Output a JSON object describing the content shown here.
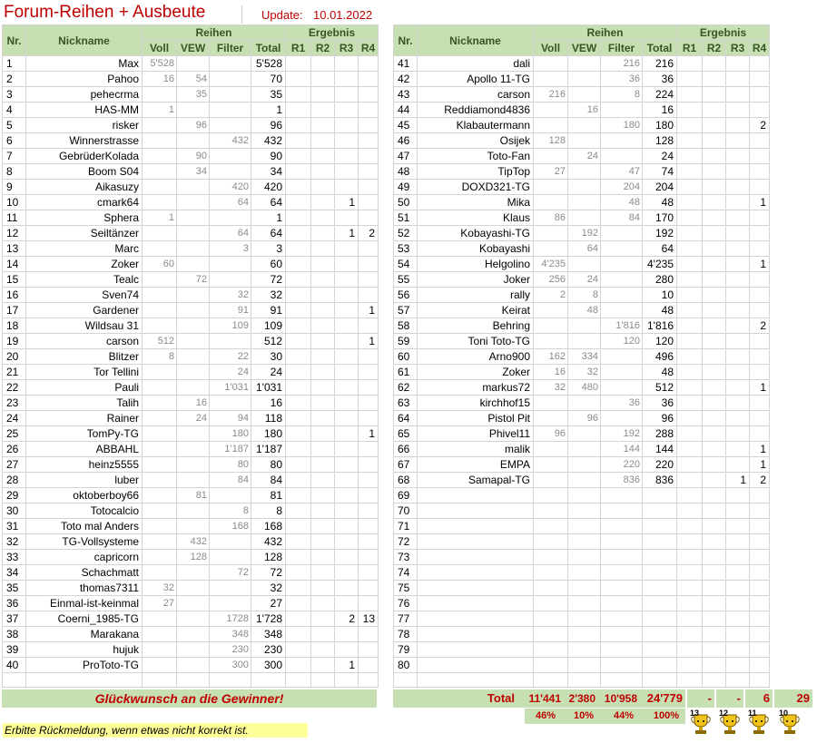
{
  "header": {
    "title": "Forum-Reihen + Ausbeute",
    "update_label": "Update:",
    "update_date": "10.01.2022"
  },
  "table_headers": {
    "nr": "Nr.",
    "nickname": "Nickname",
    "reihen": "Reihen",
    "ergebnis": "Ergebnis",
    "voll": "Voll",
    "vew": "VEW",
    "filter": "Filter",
    "total": "Total",
    "r1": "R1",
    "r2": "R2",
    "r3": "R3",
    "r4": "R4"
  },
  "rows": [
    {
      "nr": "1",
      "nick": "Max",
      "voll": "5'528",
      "vew": "",
      "filter": "",
      "total": "5'528",
      "r1": "",
      "r2": "",
      "r3": "",
      "r4": ""
    },
    {
      "nr": "2",
      "nick": "Pahoo",
      "voll": "16",
      "vew": "54",
      "filter": "",
      "total": "70",
      "r1": "",
      "r2": "",
      "r3": "",
      "r4": ""
    },
    {
      "nr": "3",
      "nick": "pehecrma",
      "voll": "",
      "vew": "35",
      "filter": "",
      "total": "35",
      "r1": "",
      "r2": "",
      "r3": "",
      "r4": ""
    },
    {
      "nr": "4",
      "nick": "HAS-MM",
      "voll": "1",
      "vew": "",
      "filter": "",
      "total": "1",
      "r1": "",
      "r2": "",
      "r3": "",
      "r4": ""
    },
    {
      "nr": "5",
      "nick": "risker",
      "voll": "",
      "vew": "96",
      "filter": "",
      "total": "96",
      "r1": "",
      "r2": "",
      "r3": "",
      "r4": ""
    },
    {
      "nr": "6",
      "nick": "Winnerstrasse",
      "voll": "",
      "vew": "",
      "filter": "432",
      "total": "432",
      "r1": "",
      "r2": "",
      "r3": "",
      "r4": ""
    },
    {
      "nr": "7",
      "nick": "GebrüderKolada",
      "voll": "",
      "vew": "90",
      "filter": "",
      "total": "90",
      "r1": "",
      "r2": "",
      "r3": "",
      "r4": ""
    },
    {
      "nr": "8",
      "nick": "Boom S04",
      "voll": "",
      "vew": "34",
      "filter": "",
      "total": "34",
      "r1": "",
      "r2": "",
      "r3": "",
      "r4": ""
    },
    {
      "nr": "9",
      "nick": "Aikasuzy",
      "voll": "",
      "vew": "",
      "filter": "420",
      "total": "420",
      "r1": "",
      "r2": "",
      "r3": "",
      "r4": ""
    },
    {
      "nr": "10",
      "nick": "cmark64",
      "voll": "",
      "vew": "",
      "filter": "64",
      "total": "64",
      "r1": "",
      "r2": "",
      "r3": "1",
      "r4": ""
    },
    {
      "nr": "11",
      "nick": "Sphera",
      "voll": "1",
      "vew": "",
      "filter": "",
      "total": "1",
      "r1": "",
      "r2": "",
      "r3": "",
      "r4": ""
    },
    {
      "nr": "12",
      "nick": "Seiltänzer",
      "voll": "",
      "vew": "",
      "filter": "64",
      "total": "64",
      "r1": "",
      "r2": "",
      "r3": "1",
      "r4": "2"
    },
    {
      "nr": "13",
      "nick": "Marc",
      "voll": "",
      "vew": "",
      "filter": "3",
      "total": "3",
      "r1": "",
      "r2": "",
      "r3": "",
      "r4": ""
    },
    {
      "nr": "14",
      "nick": "Zoker",
      "voll": "60",
      "vew": "",
      "filter": "",
      "total": "60",
      "r1": "",
      "r2": "",
      "r3": "",
      "r4": ""
    },
    {
      "nr": "15",
      "nick": "Tealc",
      "voll": "",
      "vew": "72",
      "filter": "",
      "total": "72",
      "r1": "",
      "r2": "",
      "r3": "",
      "r4": ""
    },
    {
      "nr": "16",
      "nick": "Sven74",
      "voll": "",
      "vew": "",
      "filter": "32",
      "total": "32",
      "r1": "",
      "r2": "",
      "r3": "",
      "r4": ""
    },
    {
      "nr": "17",
      "nick": "Gardener",
      "voll": "",
      "vew": "",
      "filter": "91",
      "total": "91",
      "r1": "",
      "r2": "",
      "r3": "",
      "r4": "1"
    },
    {
      "nr": "18",
      "nick": "Wildsau 31",
      "voll": "",
      "vew": "",
      "filter": "109",
      "total": "109",
      "r1": "",
      "r2": "",
      "r3": "",
      "r4": ""
    },
    {
      "nr": "19",
      "nick": "carson",
      "voll": "512",
      "vew": "",
      "filter": "",
      "total": "512",
      "r1": "",
      "r2": "",
      "r3": "",
      "r4": "1"
    },
    {
      "nr": "20",
      "nick": "Blitzer",
      "voll": "8",
      "vew": "",
      "filter": "22",
      "total": "30",
      "r1": "",
      "r2": "",
      "r3": "",
      "r4": ""
    },
    {
      "nr": "21",
      "nick": "Tor Tellini",
      "voll": "",
      "vew": "",
      "filter": "24",
      "total": "24",
      "r1": "",
      "r2": "",
      "r3": "",
      "r4": ""
    },
    {
      "nr": "22",
      "nick": "Pauli",
      "voll": "",
      "vew": "",
      "filter": "1'031",
      "total": "1'031",
      "r1": "",
      "r2": "",
      "r3": "",
      "r4": ""
    },
    {
      "nr": "23",
      "nick": "Talih",
      "voll": "",
      "vew": "16",
      "filter": "",
      "total": "16",
      "r1": "",
      "r2": "",
      "r3": "",
      "r4": ""
    },
    {
      "nr": "24",
      "nick": "Rainer",
      "voll": "",
      "vew": "24",
      "filter": "94",
      "total": "118",
      "r1": "",
      "r2": "",
      "r3": "",
      "r4": ""
    },
    {
      "nr": "25",
      "nick": "TomPy-TG",
      "voll": "",
      "vew": "",
      "filter": "180",
      "total": "180",
      "r1": "",
      "r2": "",
      "r3": "",
      "r4": "1"
    },
    {
      "nr": "26",
      "nick": "ABBAHL",
      "voll": "",
      "vew": "",
      "filter": "1'187",
      "total": "1'187",
      "r1": "",
      "r2": "",
      "r3": "",
      "r4": ""
    },
    {
      "nr": "27",
      "nick": "heinz5555",
      "voll": "",
      "vew": "",
      "filter": "80",
      "total": "80",
      "r1": "",
      "r2": "",
      "r3": "",
      "r4": ""
    },
    {
      "nr": "28",
      "nick": "luber",
      "voll": "",
      "vew": "",
      "filter": "84",
      "total": "84",
      "r1": "",
      "r2": "",
      "r3": "",
      "r4": ""
    },
    {
      "nr": "29",
      "nick": "oktoberboy66",
      "voll": "",
      "vew": "81",
      "filter": "",
      "total": "81",
      "r1": "",
      "r2": "",
      "r3": "",
      "r4": ""
    },
    {
      "nr": "30",
      "nick": "Totocalcio",
      "voll": "",
      "vew": "",
      "filter": "8",
      "total": "8",
      "r1": "",
      "r2": "",
      "r3": "",
      "r4": ""
    },
    {
      "nr": "31",
      "nick": "Toto mal Anders",
      "voll": "",
      "vew": "",
      "filter": "168",
      "total": "168",
      "r1": "",
      "r2": "",
      "r3": "",
      "r4": ""
    },
    {
      "nr": "32",
      "nick": "TG-Vollsysteme",
      "voll": "",
      "vew": "432",
      "filter": "",
      "total": "432",
      "r1": "",
      "r2": "",
      "r3": "",
      "r4": ""
    },
    {
      "nr": "33",
      "nick": "capricorn",
      "voll": "",
      "vew": "128",
      "filter": "",
      "total": "128",
      "r1": "",
      "r2": "",
      "r3": "",
      "r4": ""
    },
    {
      "nr": "34",
      "nick": "Schachmatt",
      "voll": "",
      "vew": "",
      "filter": "72",
      "total": "72",
      "r1": "",
      "r2": "",
      "r3": "",
      "r4": ""
    },
    {
      "nr": "35",
      "nick": "thomas7311",
      "voll": "32",
      "vew": "",
      "filter": "",
      "total": "32",
      "r1": "",
      "r2": "",
      "r3": "",
      "r4": ""
    },
    {
      "nr": "36",
      "nick": "Einmal-ist-keinmal",
      "voll": "27",
      "vew": "",
      "filter": "",
      "total": "27",
      "r1": "",
      "r2": "",
      "r3": "",
      "r4": ""
    },
    {
      "nr": "37",
      "nick": "Coerni_1985-TG",
      "voll": "",
      "vew": "",
      "filter": "1728",
      "total": "1'728",
      "r1": "",
      "r2": "",
      "r3": "2",
      "r4": "13"
    },
    {
      "nr": "38",
      "nick": "Marakana",
      "voll": "",
      "vew": "",
      "filter": "348",
      "total": "348",
      "r1": "",
      "r2": "",
      "r3": "",
      "r4": ""
    },
    {
      "nr": "39",
      "nick": "hujuk",
      "voll": "",
      "vew": "",
      "filter": "230",
      "total": "230",
      "r1": "",
      "r2": "",
      "r3": "",
      "r4": ""
    },
    {
      "nr": "40",
      "nick": "ProToto-TG",
      "voll": "",
      "vew": "",
      "filter": "300",
      "total": "300",
      "r1": "",
      "r2": "",
      "r3": "1",
      "r4": ""
    },
    {
      "nr": "41",
      "nick": "dali",
      "voll": "",
      "vew": "",
      "filter": "216",
      "total": "216",
      "r1": "",
      "r2": "",
      "r3": "",
      "r4": ""
    },
    {
      "nr": "42",
      "nick": "Apollo 11-TG",
      "voll": "",
      "vew": "",
      "filter": "36",
      "total": "36",
      "r1": "",
      "r2": "",
      "r3": "",
      "r4": ""
    },
    {
      "nr": "43",
      "nick": "carson",
      "voll": "216",
      "vew": "",
      "filter": "8",
      "total": "224",
      "r1": "",
      "r2": "",
      "r3": "",
      "r4": ""
    },
    {
      "nr": "44",
      "nick": "Reddiamond4836",
      "voll": "",
      "vew": "16",
      "filter": "",
      "total": "16",
      "r1": "",
      "r2": "",
      "r3": "",
      "r4": ""
    },
    {
      "nr": "45",
      "nick": "Klabautermann",
      "voll": "",
      "vew": "",
      "filter": "180",
      "total": "180",
      "r1": "",
      "r2": "",
      "r3": "",
      "r4": "2"
    },
    {
      "nr": "46",
      "nick": "Osijek",
      "voll": "128",
      "vew": "",
      "filter": "",
      "total": "128",
      "r1": "",
      "r2": "",
      "r3": "",
      "r4": ""
    },
    {
      "nr": "47",
      "nick": "Toto-Fan",
      "voll": "",
      "vew": "24",
      "filter": "",
      "total": "24",
      "r1": "",
      "r2": "",
      "r3": "",
      "r4": ""
    },
    {
      "nr": "48",
      "nick": "TipTop",
      "voll": "27",
      "vew": "",
      "filter": "47",
      "total": "74",
      "r1": "",
      "r2": "",
      "r3": "",
      "r4": ""
    },
    {
      "nr": "49",
      "nick": "DOXD321-TG",
      "voll": "",
      "vew": "",
      "filter": "204",
      "total": "204",
      "r1": "",
      "r2": "",
      "r3": "",
      "r4": ""
    },
    {
      "nr": "50",
      "nick": "Mika",
      "voll": "",
      "vew": "",
      "filter": "48",
      "total": "48",
      "r1": "",
      "r2": "",
      "r3": "",
      "r4": "1"
    },
    {
      "nr": "51",
      "nick": "Klaus",
      "voll": "86",
      "vew": "",
      "filter": "84",
      "total": "170",
      "r1": "",
      "r2": "",
      "r3": "",
      "r4": ""
    },
    {
      "nr": "52",
      "nick": "Kobayashi-TG",
      "voll": "",
      "vew": "192",
      "filter": "",
      "total": "192",
      "r1": "",
      "r2": "",
      "r3": "",
      "r4": ""
    },
    {
      "nr": "53",
      "nick": "Kobayashi",
      "voll": "",
      "vew": "64",
      "filter": "",
      "total": "64",
      "r1": "",
      "r2": "",
      "r3": "",
      "r4": ""
    },
    {
      "nr": "54",
      "nick": "Helgolino",
      "voll": "4'235",
      "vew": "",
      "filter": "",
      "total": "4'235",
      "r1": "",
      "r2": "",
      "r3": "",
      "r4": "1"
    },
    {
      "nr": "55",
      "nick": "Joker",
      "voll": "256",
      "vew": "24",
      "filter": "",
      "total": "280",
      "r1": "",
      "r2": "",
      "r3": "",
      "r4": ""
    },
    {
      "nr": "56",
      "nick": "rally",
      "voll": "2",
      "vew": "8",
      "filter": "",
      "total": "10",
      "r1": "",
      "r2": "",
      "r3": "",
      "r4": ""
    },
    {
      "nr": "57",
      "nick": "Keirat",
      "voll": "",
      "vew": "48",
      "filter": "",
      "total": "48",
      "r1": "",
      "r2": "",
      "r3": "",
      "r4": ""
    },
    {
      "nr": "58",
      "nick": "Behring",
      "voll": "",
      "vew": "",
      "filter": "1'816",
      "total": "1'816",
      "r1": "",
      "r2": "",
      "r3": "",
      "r4": "2"
    },
    {
      "nr": "59",
      "nick": "Toni Toto-TG",
      "voll": "",
      "vew": "",
      "filter": "120",
      "total": "120",
      "r1": "",
      "r2": "",
      "r3": "",
      "r4": ""
    },
    {
      "nr": "60",
      "nick": "Arno900",
      "voll": "162",
      "vew": "334",
      "filter": "",
      "total": "496",
      "r1": "",
      "r2": "",
      "r3": "",
      "r4": ""
    },
    {
      "nr": "61",
      "nick": "Zoker",
      "voll": "16",
      "vew": "32",
      "filter": "",
      "total": "48",
      "r1": "",
      "r2": "",
      "r3": "",
      "r4": ""
    },
    {
      "nr": "62",
      "nick": "markus72",
      "voll": "32",
      "vew": "480",
      "filter": "",
      "total": "512",
      "r1": "",
      "r2": "",
      "r3": "",
      "r4": "1"
    },
    {
      "nr": "63",
      "nick": "kirchhof15",
      "voll": "",
      "vew": "",
      "filter": "36",
      "total": "36",
      "r1": "",
      "r2": "",
      "r3": "",
      "r4": ""
    },
    {
      "nr": "64",
      "nick": "Pistol Pit",
      "voll": "",
      "vew": "96",
      "filter": "",
      "total": "96",
      "r1": "",
      "r2": "",
      "r3": "",
      "r4": ""
    },
    {
      "nr": "65",
      "nick": "Phivel11",
      "voll": "96",
      "vew": "",
      "filter": "192",
      "total": "288",
      "r1": "",
      "r2": "",
      "r3": "",
      "r4": ""
    },
    {
      "nr": "66",
      "nick": "malik",
      "voll": "",
      "vew": "",
      "filter": "144",
      "total": "144",
      "r1": "",
      "r2": "",
      "r3": "",
      "r4": "1"
    },
    {
      "nr": "67",
      "nick": "EMPA",
      "voll": "",
      "vew": "",
      "filter": "220",
      "total": "220",
      "r1": "",
      "r2": "",
      "r3": "",
      "r4": "1"
    },
    {
      "nr": "68",
      "nick": "Samapal-TG",
      "voll": "",
      "vew": "",
      "filter": "836",
      "total": "836",
      "r1": "",
      "r2": "",
      "r3": "1",
      "r4": "2"
    },
    {
      "nr": "69",
      "nick": "",
      "voll": "",
      "vew": "",
      "filter": "",
      "total": "",
      "r1": "",
      "r2": "",
      "r3": "",
      "r4": ""
    },
    {
      "nr": "70",
      "nick": "",
      "voll": "",
      "vew": "",
      "filter": "",
      "total": "",
      "r1": "",
      "r2": "",
      "r3": "",
      "r4": ""
    },
    {
      "nr": "71",
      "nick": "",
      "voll": "",
      "vew": "",
      "filter": "",
      "total": "",
      "r1": "",
      "r2": "",
      "r3": "",
      "r4": ""
    },
    {
      "nr": "72",
      "nick": "",
      "voll": "",
      "vew": "",
      "filter": "",
      "total": "",
      "r1": "",
      "r2": "",
      "r3": "",
      "r4": ""
    },
    {
      "nr": "73",
      "nick": "",
      "voll": "",
      "vew": "",
      "filter": "",
      "total": "",
      "r1": "",
      "r2": "",
      "r3": "",
      "r4": ""
    },
    {
      "nr": "74",
      "nick": "",
      "voll": "",
      "vew": "",
      "filter": "",
      "total": "",
      "r1": "",
      "r2": "",
      "r3": "",
      "r4": ""
    },
    {
      "nr": "75",
      "nick": "",
      "voll": "",
      "vew": "",
      "filter": "",
      "total": "",
      "r1": "",
      "r2": "",
      "r3": "",
      "r4": ""
    },
    {
      "nr": "76",
      "nick": "",
      "voll": "",
      "vew": "",
      "filter": "",
      "total": "",
      "r1": "",
      "r2": "",
      "r3": "",
      "r4": ""
    },
    {
      "nr": "77",
      "nick": "",
      "voll": "",
      "vew": "",
      "filter": "",
      "total": "",
      "r1": "",
      "r2": "",
      "r3": "",
      "r4": ""
    },
    {
      "nr": "78",
      "nick": "",
      "voll": "",
      "vew": "",
      "filter": "",
      "total": "",
      "r1": "",
      "r2": "",
      "r3": "",
      "r4": ""
    },
    {
      "nr": "79",
      "nick": "",
      "voll": "",
      "vew": "",
      "filter": "",
      "total": "",
      "r1": "",
      "r2": "",
      "r3": "",
      "r4": ""
    },
    {
      "nr": "80",
      "nick": "",
      "voll": "",
      "vew": "",
      "filter": "",
      "total": "",
      "r1": "",
      "r2": "",
      "r3": "",
      "r4": ""
    }
  ],
  "footer": {
    "congrats": "Glückwunsch an die Gewinner!",
    "total_label": "Total",
    "totals": {
      "voll": "11'441",
      "vew": "2'380",
      "filter": "10'958",
      "total": "24'779",
      "r1": "-",
      "r2": "-",
      "r3": "6",
      "r4": "29"
    },
    "percents": {
      "voll": "46%",
      "vew": "10%",
      "filter": "44%",
      "total": "100%"
    },
    "trophy_labels": [
      "13",
      "12",
      "11",
      "10"
    ],
    "feedback": "Erbitte Rückmeldung, wenn etwas nicht korrekt ist."
  },
  "colors": {
    "header_bg": "#c6e0b4",
    "accent_red": "#c00000",
    "feedback_bg": "#ffff99"
  },
  "icons": [
    "trophy-icon"
  ]
}
